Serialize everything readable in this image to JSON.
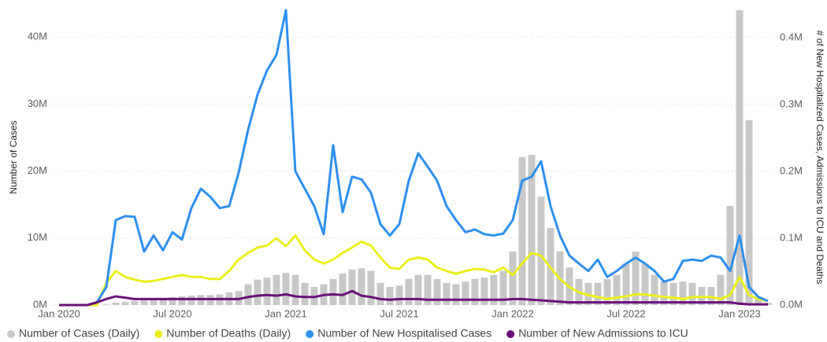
{
  "chart_data": {
    "type": "combo",
    "y_label": "Number of Cases",
    "y2_label": "# of New Hospitalized Cases, Admissions to ICU and Deaths",
    "categories": [
      "Jan 2020",
      null,
      null,
      null,
      null,
      null,
      null,
      null,
      null,
      null,
      null,
      null,
      "Jul 2020",
      null,
      null,
      null,
      null,
      null,
      null,
      null,
      null,
      null,
      null,
      null,
      "Jan 2021",
      null,
      null,
      null,
      null,
      null,
      null,
      null,
      null,
      null,
      null,
      null,
      "Jul 2021",
      null,
      null,
      null,
      null,
      null,
      null,
      null,
      null,
      null,
      null,
      null,
      "Jan 2022",
      null,
      null,
      null,
      null,
      null,
      null,
      null,
      null,
      null,
      null,
      null,
      "Jul 2022",
      null,
      null,
      null,
      null,
      null,
      null,
      null,
      null,
      null,
      null,
      null,
      "Jan 2023",
      null,
      null,
      null
    ],
    "ylim": [
      0,
      44000000
    ],
    "yticks": [
      {
        "value": 0,
        "label": "0M"
      },
      {
        "value": 10000000,
        "label": "10M"
      },
      {
        "value": 20000000,
        "label": "20M"
      },
      {
        "value": 30000000,
        "label": "30M"
      },
      {
        "value": 40000000,
        "label": "40M"
      }
    ],
    "y2lim": [
      0,
      441000
    ],
    "y2ticks": [
      {
        "value": 0,
        "label": "0.0M"
      },
      {
        "value": 100000,
        "label": "0.1M"
      },
      {
        "value": 200000,
        "label": "0.2M"
      },
      {
        "value": 300000,
        "label": "0.3M"
      },
      {
        "value": 400000,
        "label": "0.4M"
      }
    ],
    "grid": true,
    "legend": "bottom",
    "series": [
      {
        "name": "Number of Cases (Daily)",
        "type": "bar",
        "color": "#c8c8c8",
        "values": [
          0,
          0,
          0,
          0,
          0,
          100000,
          350000,
          470000,
          600000,
          700000,
          800000,
          900000,
          1200000,
          1300000,
          1400000,
          1500000,
          1500000,
          1600000,
          1900000,
          2100000,
          3100000,
          3800000,
          4100000,
          4500000,
          4800000,
          4500000,
          3300000,
          2700000,
          3100000,
          3900000,
          4700000,
          5300000,
          5500000,
          5100000,
          3300000,
          2700000,
          2900000,
          3900000,
          4500000,
          4500000,
          3900000,
          3300000,
          3100000,
          3500000,
          3900000,
          4100000,
          4500000,
          5100000,
          8000000,
          22100000,
          22400000,
          16200000,
          11500000,
          8000000,
          5600000,
          3900000,
          3300000,
          3300000,
          3900000,
          4500000,
          6200000,
          8000000,
          6200000,
          4500000,
          3500000,
          3300000,
          3500000,
          3300000,
          2700000,
          2700000,
          4500000,
          14800000,
          44000000,
          27600000,
          900000,
          350000
        ]
      },
      {
        "name": "Number of Deaths (Daily)",
        "type": "line",
        "axis": "y2",
        "color": "#eaf01e",
        "values": [
          0,
          0,
          0,
          0,
          0,
          33000,
          51000,
          42000,
          38000,
          35000,
          36000,
          39000,
          42000,
          45000,
          42000,
          42000,
          39000,
          39000,
          51000,
          68000,
          78000,
          86000,
          89000,
          100000,
          88000,
          104000,
          82000,
          68000,
          62000,
          68000,
          78000,
          86000,
          95000,
          89000,
          71000,
          56000,
          54000,
          68000,
          71000,
          68000,
          56000,
          51000,
          47000,
          51000,
          54000,
          53000,
          49000,
          56000,
          45000,
          62000,
          78000,
          74000,
          56000,
          39000,
          27000,
          19000,
          15000,
          12000,
          9000,
          11000,
          13000,
          16000,
          16000,
          14000,
          12000,
          11000,
          9000,
          12000,
          12000,
          12000,
          9000,
          15000,
          42000,
          15000,
          9000,
          6000
        ]
      },
      {
        "name": "Number of New Hospitalised Cases",
        "type": "line",
        "axis": "y2",
        "color": "#2d8fef",
        "values": [
          0,
          0,
          0,
          0,
          4000,
          27000,
          127000,
          133000,
          132000,
          80000,
          104000,
          82000,
          109000,
          98000,
          145000,
          174000,
          162000,
          145000,
          148000,
          198000,
          262000,
          315000,
          351000,
          374000,
          441000,
          200000,
          174000,
          148000,
          106000,
          239000,
          139000,
          192000,
          188000,
          168000,
          121000,
          104000,
          121000,
          186000,
          227000,
          207000,
          186000,
          148000,
          127000,
          109000,
          113000,
          106000,
          104000,
          107000,
          127000,
          186000,
          192000,
          215000,
          148000,
          104000,
          74000,
          62000,
          51000,
          68000,
          42000,
          51000,
          62000,
          71000,
          62000,
          51000,
          35000,
          39000,
          66000,
          68000,
          66000,
          74000,
          71000,
          51000,
          104000,
          27000,
          12000,
          6000
        ]
      },
      {
        "name": "Number of New Admissions to ICU",
        "type": "line",
        "axis": "y2",
        "color": "#6b0f7a",
        "values": [
          0,
          0,
          0,
          0,
          4000,
          9000,
          13000,
          11000,
          9000,
          9000,
          9000,
          9000,
          9000,
          9000,
          9000,
          9000,
          9000,
          9000,
          9000,
          9000,
          12000,
          14000,
          15000,
          14000,
          16000,
          13000,
          12000,
          12000,
          15000,
          16000,
          15000,
          21000,
          14000,
          12000,
          9000,
          8000,
          9000,
          9000,
          9000,
          8000,
          8000,
          8000,
          8000,
          8000,
          8000,
          8000,
          8000,
          8000,
          9000,
          9000,
          8000,
          7000,
          6000,
          5000,
          4000,
          4000,
          4000,
          4000,
          4000,
          4000,
          4000,
          4000,
          4000,
          4000,
          4000,
          4000,
          4000,
          4000,
          4000,
          4000,
          4000,
          4000,
          2000,
          1000,
          1000,
          1000
        ]
      }
    ]
  }
}
